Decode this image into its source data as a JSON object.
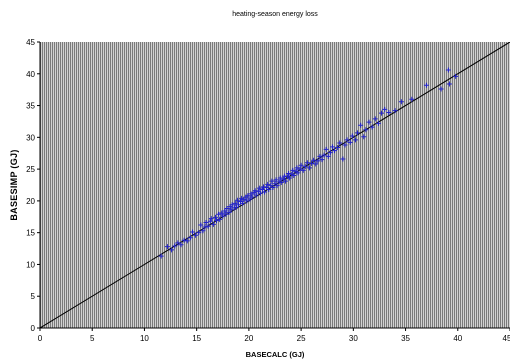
{
  "chart_data": {
    "type": "scatter",
    "title": "heating-season energy loss",
    "xlabel": "BASECALC (GJ)",
    "ylabel": "BASESIMP (GJ)",
    "xlim": [
      0,
      45
    ],
    "ylim": [
      0,
      45
    ],
    "xticks": [
      "0",
      "5",
      "10",
      "15",
      "20",
      "25",
      "30",
      "35",
      "40",
      "45"
    ],
    "yticks": [
      "0",
      "5",
      "10",
      "15",
      "20",
      "25",
      "30",
      "35",
      "40",
      "45"
    ],
    "grid": false,
    "legend": "none",
    "marker": "plus",
    "colors": {
      "points": "#2222cc",
      "line": "#000000",
      "plot_bg": "#c8c8c8",
      "hatch": "#7a7a7a"
    },
    "reference_line": {
      "from": [
        0,
        0
      ],
      "to": [
        45,
        45
      ]
    },
    "points": [
      [
        11.6,
        11.3
      ],
      [
        12.2,
        12.8
      ],
      [
        12.6,
        12.3
      ],
      [
        12.9,
        12.9
      ],
      [
        13.2,
        13.4
      ],
      [
        13.5,
        13.1
      ],
      [
        13.8,
        13.8
      ],
      [
        14.1,
        13.7
      ],
      [
        14.4,
        14.2
      ],
      [
        14.6,
        15.1
      ],
      [
        14.9,
        14.6
      ],
      [
        15.2,
        15.0
      ],
      [
        15.4,
        16.2
      ],
      [
        15.6,
        15.3
      ],
      [
        15.8,
        15.9
      ],
      [
        15.9,
        16.6
      ],
      [
        16.1,
        16.0
      ],
      [
        16.3,
        16.8
      ],
      [
        16.4,
        17.2
      ],
      [
        16.6,
        16.3
      ],
      [
        16.8,
        17.4
      ],
      [
        16.9,
        16.9
      ],
      [
        17.1,
        17.9
      ],
      [
        17.2,
        17.1
      ],
      [
        17.4,
        18.1
      ],
      [
        17.5,
        17.6
      ],
      [
        17.7,
        18.4
      ],
      [
        17.8,
        17.9
      ],
      [
        17.9,
        18.8
      ],
      [
        18.1,
        18.2
      ],
      [
        18.2,
        19.1
      ],
      [
        18.3,
        18.6
      ],
      [
        18.4,
        19.4
      ],
      [
        18.6,
        18.9
      ],
      [
        18.7,
        19.6
      ],
      [
        18.8,
        19.0
      ],
      [
        18.9,
        20.1
      ],
      [
        19.0,
        19.4
      ],
      [
        19.2,
        19.9
      ],
      [
        19.3,
        20.4
      ],
      [
        19.4,
        19.6
      ],
      [
        19.5,
        20.2
      ],
      [
        19.7,
        20.6
      ],
      [
        19.8,
        20.0
      ],
      [
        19.9,
        20.8
      ],
      [
        20.1,
        20.3
      ],
      [
        20.2,
        21.1
      ],
      [
        20.3,
        20.6
      ],
      [
        20.5,
        21.3
      ],
      [
        20.6,
        21.6
      ],
      [
        20.7,
        20.9
      ],
      [
        20.9,
        21.5
      ],
      [
        21.0,
        22.0
      ],
      [
        21.1,
        21.2
      ],
      [
        21.3,
        21.8
      ],
      [
        21.4,
        22.2
      ],
      [
        21.5,
        21.4
      ],
      [
        21.7,
        22.1
      ],
      [
        21.8,
        22.6
      ],
      [
        21.9,
        21.8
      ],
      [
        22.1,
        22.4
      ],
      [
        22.2,
        23.1
      ],
      [
        22.3,
        22.1
      ],
      [
        22.5,
        22.7
      ],
      [
        22.6,
        23.3
      ],
      [
        22.7,
        22.4
      ],
      [
        22.9,
        23.0
      ],
      [
        23.0,
        23.6
      ],
      [
        23.1,
        22.9
      ],
      [
        23.3,
        23.4
      ],
      [
        23.4,
        23.9
      ],
      [
        23.5,
        23.1
      ],
      [
        23.7,
        23.8
      ],
      [
        23.8,
        24.3
      ],
      [
        23.9,
        23.6
      ],
      [
        24.1,
        24.2
      ],
      [
        24.2,
        24.8
      ],
      [
        24.3,
        24.0
      ],
      [
        24.5,
        24.6
      ],
      [
        24.6,
        25.2
      ],
      [
        24.7,
        24.4
      ],
      [
        24.9,
        25.0
      ],
      [
        25.0,
        25.6
      ],
      [
        25.2,
        24.8
      ],
      [
        25.4,
        25.4
      ],
      [
        25.6,
        26.0
      ],
      [
        25.8,
        25.2
      ],
      [
        26.0,
        25.9
      ],
      [
        26.2,
        26.4
      ],
      [
        26.4,
        25.8
      ],
      [
        26.6,
        26.3
      ],
      [
        26.8,
        27.0
      ],
      [
        27.0,
        26.5
      ],
      [
        27.2,
        27.2
      ],
      [
        27.4,
        28.1
      ],
      [
        27.6,
        27.0
      ],
      [
        27.8,
        27.6
      ],
      [
        28.0,
        28.5
      ],
      [
        28.2,
        27.9
      ],
      [
        28.5,
        28.4
      ],
      [
        28.7,
        29.1
      ],
      [
        29.0,
        26.6
      ],
      [
        29.2,
        28.8
      ],
      [
        29.4,
        29.6
      ],
      [
        29.7,
        29.2
      ],
      [
        29.9,
        30.2
      ],
      [
        30.2,
        29.6
      ],
      [
        30.4,
        30.7
      ],
      [
        30.7,
        31.9
      ],
      [
        31.0,
        30.1
      ],
      [
        31.2,
        31.2
      ],
      [
        31.5,
        32.4
      ],
      [
        31.8,
        31.6
      ],
      [
        32.1,
        32.9
      ],
      [
        32.4,
        32.2
      ],
      [
        32.7,
        33.8
      ],
      [
        33.0,
        34.4
      ],
      [
        33.4,
        33.9
      ],
      [
        34.0,
        34.2
      ],
      [
        34.6,
        35.6
      ],
      [
        35.6,
        36.0
      ],
      [
        37.0,
        38.2
      ],
      [
        38.4,
        37.6
      ],
      [
        39.1,
        40.6
      ],
      [
        39.2,
        38.4
      ],
      [
        39.8,
        39.6
      ]
    ]
  }
}
